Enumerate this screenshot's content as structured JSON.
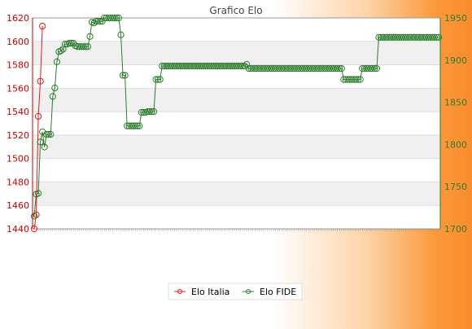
{
  "chart_data": {
    "type": "line",
    "title": "Grafico Elo",
    "xlabel": "",
    "grid": true,
    "legend_position": "bottom",
    "left_axis": {
      "ylim": [
        1440,
        1620
      ],
      "ticks": [
        "1440",
        "1460",
        "1480",
        "1500",
        "1520",
        "1540",
        "1560",
        "1580",
        "1600",
        "1620"
      ],
      "color": "#cc0000"
    },
    "right_axis": {
      "ylim": [
        1700,
        1950
      ],
      "ticks": [
        "1700",
        "1750",
        "1800",
        "1850",
        "1900",
        "1950"
      ],
      "color": "#2e7d2e"
    },
    "series": [
      {
        "name": "Elo Italia",
        "axis": "left",
        "color": "#e31a1c",
        "values": [
          1440,
          1452,
          1536,
          1566,
          1613
        ]
      },
      {
        "name": "Elo FIDE",
        "axis": "right",
        "color": "#2e7d2e",
        "values": [
          1715,
          1741,
          1742,
          1803,
          1815,
          1797,
          1812,
          1812,
          1812,
          1857,
          1867,
          1898,
          1910,
          1911,
          1913,
          1919,
          1919,
          1920,
          1920,
          1920,
          1917,
          1916,
          1916,
          1916,
          1916,
          1916,
          1916,
          1928,
          1945,
          1944,
          1946,
          1946,
          1946,
          1946,
          1950,
          1950,
          1950,
          1950,
          1950,
          1950,
          1950,
          1950,
          1930,
          1882,
          1882,
          1822,
          1822,
          1822,
          1822,
          1822,
          1822,
          1822,
          1838,
          1838,
          1838,
          1839,
          1839,
          1839,
          1839,
          1877,
          1877,
          1877,
          1893,
          1893,
          1893,
          1893,
          1893,
          1893,
          1893,
          1893,
          1893,
          1893,
          1893,
          1893,
          1893,
          1893,
          1893,
          1893,
          1893,
          1893,
          1893,
          1893,
          1893,
          1893,
          1893,
          1893,
          1893,
          1893,
          1893,
          1893,
          1893,
          1893,
          1893,
          1893,
          1893,
          1893,
          1893,
          1893,
          1893,
          1893,
          1893,
          1893,
          1893,
          1895,
          1890,
          1890,
          1890,
          1890,
          1890,
          1890,
          1890,
          1890,
          1890,
          1890,
          1890,
          1890,
          1890,
          1890,
          1890,
          1890,
          1890,
          1890,
          1890,
          1890,
          1890,
          1890,
          1890,
          1890,
          1890,
          1890,
          1890,
          1890,
          1890,
          1890,
          1890,
          1890,
          1890,
          1890,
          1890,
          1890,
          1890,
          1890,
          1890,
          1890,
          1890,
          1890,
          1890,
          1890,
          1890,
          1890,
          1877,
          1877,
          1877,
          1877,
          1877,
          1877,
          1877,
          1877,
          1877,
          1890,
          1890,
          1890,
          1890,
          1890,
          1890,
          1890,
          1890,
          1927,
          1927,
          1927,
          1927,
          1927,
          1927,
          1927,
          1927,
          1927,
          1927,
          1927,
          1927,
          1927,
          1927,
          1927,
          1927,
          1927,
          1927,
          1927,
          1927,
          1927,
          1927,
          1927,
          1927,
          1927,
          1927,
          1927,
          1927,
          1927,
          1927
        ]
      }
    ]
  }
}
